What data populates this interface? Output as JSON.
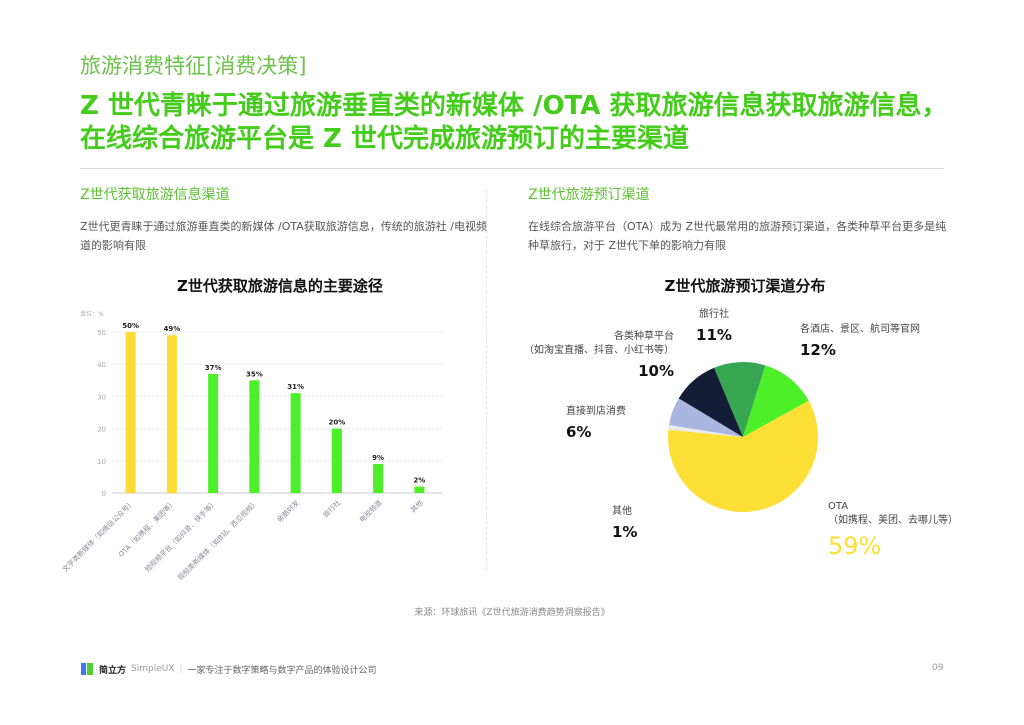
{
  "kicker": "旅游消费特征[消费决策]",
  "headline": "Z 世代青睐于通过旅游垂直类的新媒体 /OTA 获取旅游信息获取旅游信息，在线综合旅游平台是 Z 世代完成旅游预订的主要渠道",
  "left": {
    "section": "Z世代获取旅游信息渠道",
    "desc": "Z世代更青睐于通过旅游垂直类的新媒体 /OTA获取旅游信息，传统的旅游社 /电视频道的影响有限"
  },
  "right": {
    "section": "Z世代旅游预订渠道",
    "desc": "在线综合旅游平台（OTA）成为 Z世代最常用的旅游预订渠道，各类种草平台更多是纯种草旅行，对于 Z世代下单的影响力有限"
  },
  "chart_data": [
    {
      "type": "bar",
      "title": "Z世代获取旅游信息的主要途径",
      "unit_label": "单位：%",
      "ylim": [
        0,
        50
      ],
      "yticks": [
        0,
        10,
        20,
        30,
        40,
        50
      ],
      "grid": true,
      "categories": [
        "文字类新媒体（如微信公众号）",
        "OTA（如携程、美团等）",
        "短视频平台（如抖音、快手等）",
        "视频类新媒体（如B站、西瓜视频）",
        "亲朋好友",
        "旅行社",
        "电视频道",
        "其他"
      ],
      "values": [
        50,
        49,
        37,
        35,
        31,
        20,
        9,
        2
      ],
      "labels": [
        "50%",
        "49%",
        "37%",
        "35%",
        "31%",
        "20%",
        "9%",
        "2%"
      ],
      "colors": [
        "#fddc35",
        "#fddc35",
        "#4cef28",
        "#4cef28",
        "#4cef28",
        "#4cef28",
        "#4cef28",
        "#4cef28"
      ]
    },
    {
      "type": "pie",
      "title": "Z世代旅游预订渠道分布",
      "slices": [
        {
          "name": "OTA",
          "sub": "（如携程、美团、去哪儿等）",
          "value": 59,
          "label": "59%",
          "color": "#fddf35"
        },
        {
          "name": "其他",
          "value": 1,
          "label": "1%",
          "color": "#ececec"
        },
        {
          "name": "直接到店消费",
          "value": 6,
          "label": "6%",
          "color": "#aab6e0"
        },
        {
          "name": "各类种草平台",
          "sub": "（如淘宝直播、抖音、小红书等）",
          "value": 10,
          "label": "10%",
          "color": "#131e36"
        },
        {
          "name": "旅行社",
          "value": 11,
          "label": "11%",
          "color": "#38a550"
        },
        {
          "name": "各酒店、景区、航司等官网",
          "value": 12,
          "label": "12%",
          "color": "#4cef28"
        }
      ]
    }
  ],
  "source": "来源：环球旅讯《Z世代旅游消费趋势洞察报告》",
  "footer": {
    "brand": "简立方",
    "brand_en": "SimpleUX",
    "tagline": "一家专注于数字策略与数字产品的体验设计公司"
  },
  "page_number": "09"
}
